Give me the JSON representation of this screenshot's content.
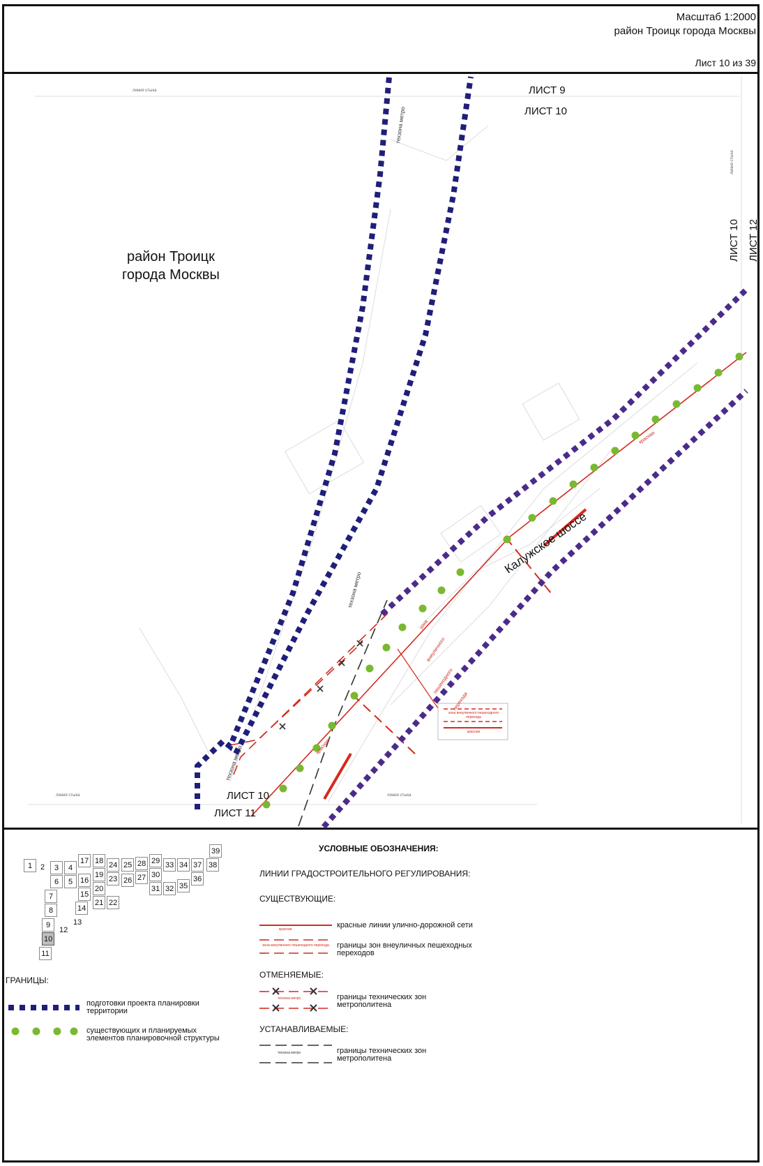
{
  "header": {
    "scale": "Масштаб 1:2000",
    "district": "район Троицк города Москвы",
    "sheet": "Лист 10 из 39"
  },
  "map": {
    "district_label_line1": "район Троицк",
    "district_label_line2": "города Москвы",
    "road_label": "Калужское шоссе",
    "sheet_top_a": "ЛИСТ 9",
    "sheet_top_b": "ЛИСТ 10",
    "sheet_right_a": "ЛИСТ 10",
    "sheet_right_b": "ЛИСТ 12",
    "sheet_bottom_a": "ЛИСТ 10",
    "sheet_bottom_b": "ЛИСТ 11",
    "junction_top": "линия стыка",
    "junction_right": "линия стыка",
    "junction_bottom_left": "линия стыка",
    "junction_bottom_mid": "линия стыка",
    "metro_zone_1": "техзона метро",
    "metro_zone_2": "техзона метро",
    "metro_zone_3": "техзона метро",
    "red_line_1": "красная",
    "red_line_2": "красная",
    "zone_l1": "зона",
    "zone_l2": "внеуличного",
    "zone_l3": "пешеходного",
    "zone_l4": "перехода",
    "callout_zone": "зона внеуличного пешеходного перехода",
    "callout_red": "красная"
  },
  "index": {
    "current": "10",
    "cells": [
      "1",
      "2",
      "3",
      "4",
      "5",
      "6",
      "7",
      "8",
      "9",
      "10",
      "11",
      "12",
      "13",
      "14",
      "15",
      "16",
      "17",
      "18",
      "19",
      "20",
      "21",
      "22",
      "23",
      "24",
      "25",
      "26",
      "27",
      "28",
      "29",
      "30",
      "31",
      "32",
      "33",
      "34",
      "35",
      "36",
      "37",
      "38",
      "39"
    ]
  },
  "legend": {
    "title": "УСЛОВНЫЕ ОБОЗНАЧЕНИЯ:",
    "group_title": "ЛИНИИ ГРАДОСТРОИТЕЛЬНОГО РЕГУЛИРОВАНИЯ:",
    "existing": "СУЩЕСТВУЮЩИЕ:",
    "red_lines_swatch": "красная",
    "red_lines": "красные линии улично-дорожной сети",
    "ped_swatch": "зона внеуличного пешеходного перехода",
    "ped_l1": "границы зон внеуличных пешеходных",
    "ped_l2": "переходов",
    "cancelled": "ОТМЕНЯЕМЫЕ:",
    "cancel_swatch": "техзона метро",
    "cancel_l1": "границы технических зон",
    "cancel_l2": "метрополитена",
    "established": "УСТАНАВЛИВАЕМЫЕ:",
    "est_swatch": "техзона метро",
    "est_l1": "границы технических зон",
    "est_l2": "метрополитена",
    "borders": "ГРАНИЦЫ:",
    "b1_l1": "подготовки проекта планировки",
    "b1_l2": "территории",
    "b2_l1": "существующих и планируемых",
    "b2_l2": "элементов планировочной структуры"
  },
  "colors": {
    "navy": "#1f1f7a",
    "purple": "#4b2b8a",
    "green": "#7ab832",
    "red": "#d42a1e",
    "dark": "#333333"
  }
}
